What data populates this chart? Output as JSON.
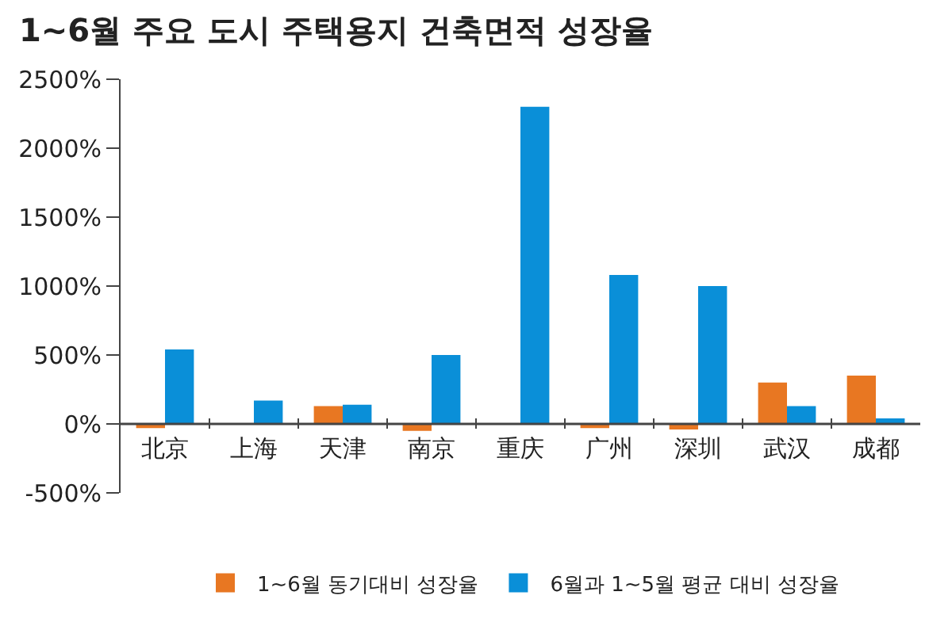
{
  "chart_data": {
    "type": "bar",
    "title": "1~6월 주요 도시 주택용지 건축면적 성장율",
    "categories": [
      "北京",
      "上海",
      "天津",
      "南京",
      "重庆",
      "广州",
      "深圳",
      "武汉",
      "成都"
    ],
    "series": [
      {
        "name": "1~6월 동기대비 성장율",
        "color": "#e87722",
        "values": [
          -30,
          0,
          130,
          -50,
          0,
          -30,
          -40,
          300,
          350
        ]
      },
      {
        "name": "6월과 1~5월 평균 대비 성장율",
        "color": "#0a8fd8",
        "values": [
          540,
          170,
          140,
          500,
          2300,
          1080,
          1000,
          130,
          40
        ]
      }
    ],
    "ylim": [
      -500,
      2500
    ],
    "yticks": [
      {
        "value": -500,
        "label": "-500%"
      },
      {
        "value": 0,
        "label": "0%"
      },
      {
        "value": 500,
        "label": "500%"
      },
      {
        "value": 1000,
        "label": "1000%"
      },
      {
        "value": 1500,
        "label": "1500%"
      },
      {
        "value": 2000,
        "label": "2000%"
      },
      {
        "value": 2500,
        "label": "2500%"
      }
    ],
    "legend": "bottom"
  }
}
